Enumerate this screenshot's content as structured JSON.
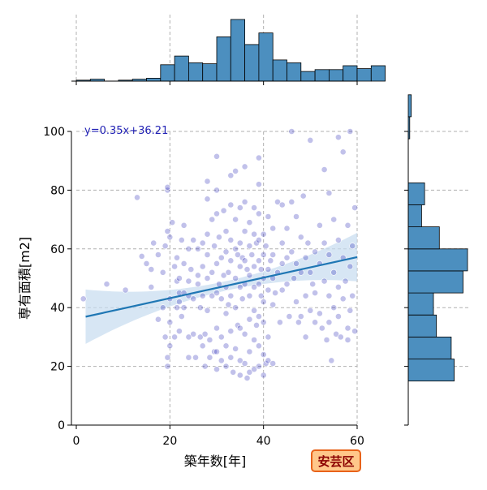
{
  "chart_data": {
    "type": "scatter",
    "subtype": "joint-plot with marginal histograms and linear regression",
    "xlabel": "築年数[年]",
    "ylabel": "専有面積[m2]",
    "xlim": [
      0,
      60
    ],
    "ylim": [
      0,
      100
    ],
    "xticks": [
      "0",
      "20",
      "40",
      "60"
    ],
    "yticks": [
      "0",
      "20",
      "40",
      "60",
      "80",
      "100"
    ],
    "grid": true,
    "regression": {
      "label": "y=0.35x+36.21",
      "slope": 0.35,
      "intercept": 36.21,
      "color": "#1f77b4",
      "ci_band_color": "#c6dbef"
    },
    "badge": {
      "text": "安芸区",
      "fill": "#ffc78a",
      "border": "#e8631a",
      "text_color": "#8b0000"
    },
    "point_color": "#1f1fb4",
    "hist_color": "#4c8fbf",
    "top_histogram": {
      "bin_width": 3,
      "bins_start": 0,
      "counts": [
        1,
        2,
        0,
        1,
        2,
        3,
        17,
        26,
        19,
        18,
        46,
        64,
        38,
        50,
        22,
        19,
        10,
        12,
        12,
        16,
        13,
        16
      ]
    },
    "right_histogram": {
      "bin_width": 7.5,
      "bins_start": 15,
      "counts": [
        31,
        29,
        19,
        17,
        37,
        40,
        21,
        9,
        11,
        0,
        0,
        1,
        2
      ]
    },
    "points": [
      [
        1.5,
        43
      ],
      [
        6.5,
        48
      ],
      [
        10.5,
        46
      ],
      [
        13,
        77.5
      ],
      [
        14,
        57.5
      ],
      [
        15,
        55
      ],
      [
        16,
        47
      ],
      [
        16,
        53
      ],
      [
        16.5,
        62
      ],
      [
        17.5,
        36
      ],
      [
        17.5,
        58
      ],
      [
        18.5,
        40
      ],
      [
        18.5,
        52
      ],
      [
        19,
        61
      ],
      [
        19,
        30
      ],
      [
        19.5,
        66
      ],
      [
        19.5,
        80
      ],
      [
        19.5,
        81
      ],
      [
        19.5,
        20
      ],
      [
        19.5,
        23
      ],
      [
        20,
        35
      ],
      [
        20,
        27
      ],
      [
        20,
        43
      ],
      [
        20,
        64
      ],
      [
        20.5,
        69
      ],
      [
        21,
        30
      ],
      [
        21,
        54
      ],
      [
        21.5,
        40
      ],
      [
        21.5,
        49
      ],
      [
        21.5,
        57
      ],
      [
        22,
        45
      ],
      [
        22,
        32
      ],
      [
        22,
        42
      ],
      [
        22,
        50
      ],
      [
        22.5,
        63
      ],
      [
        22.5,
        37
      ],
      [
        23,
        68
      ],
      [
        23,
        40
      ],
      [
        23,
        45
      ],
      [
        23,
        55
      ],
      [
        24,
        23
      ],
      [
        24,
        44
      ],
      [
        24,
        49
      ],
      [
        24,
        60
      ],
      [
        24,
        30
      ],
      [
        24.5,
        53
      ],
      [
        25,
        31
      ],
      [
        25,
        43
      ],
      [
        25,
        63
      ],
      [
        25.5,
        23
      ],
      [
        26,
        48
      ],
      [
        26,
        51
      ],
      [
        26,
        60
      ],
      [
        26.5,
        30
      ],
      [
        26.5,
        40
      ],
      [
        27,
        27
      ],
      [
        27,
        54
      ],
      [
        27,
        62
      ],
      [
        27,
        44
      ],
      [
        27.5,
        20
      ],
      [
        27.5,
        31
      ],
      [
        28,
        83
      ],
      [
        28,
        77
      ],
      [
        28,
        65
      ],
      [
        28,
        58
      ],
      [
        28,
        50
      ],
      [
        28,
        39
      ],
      [
        28.5,
        29
      ],
      [
        28.5,
        23
      ],
      [
        29,
        70
      ],
      [
        29,
        52
      ],
      [
        29,
        44
      ],
      [
        29.5,
        25
      ],
      [
        29.5,
        61
      ],
      [
        30,
        91.5
      ],
      [
        30,
        80
      ],
      [
        30,
        72
      ],
      [
        30,
        55
      ],
      [
        30,
        45
      ],
      [
        30,
        33
      ],
      [
        30,
        25
      ],
      [
        30,
        19
      ],
      [
        30.5,
        48
      ],
      [
        30.5,
        64
      ],
      [
        31,
        57
      ],
      [
        31,
        43
      ],
      [
        31,
        30
      ],
      [
        31,
        22
      ],
      [
        31.5,
        73
      ],
      [
        31.5,
        51
      ],
      [
        32,
        66
      ],
      [
        32,
        59
      ],
      [
        32,
        47
      ],
      [
        32,
        38
      ],
      [
        32,
        27
      ],
      [
        32,
        20
      ],
      [
        32.5,
        52
      ],
      [
        32.5,
        41
      ],
      [
        33,
        85
      ],
      [
        33,
        75
      ],
      [
        33,
        63
      ],
      [
        33,
        56
      ],
      [
        33,
        44
      ],
      [
        33,
        32
      ],
      [
        33,
        23
      ],
      [
        33.5,
        18
      ],
      [
        34,
        86.5
      ],
      [
        34,
        70
      ],
      [
        34,
        60
      ],
      [
        34,
        50
      ],
      [
        34,
        40
      ],
      [
        34,
        26
      ],
      [
        34.5,
        58
      ],
      [
        34.5,
        34
      ],
      [
        35,
        74
      ],
      [
        35,
        62
      ],
      [
        35,
        54
      ],
      [
        35,
        47
      ],
      [
        35,
        33
      ],
      [
        35,
        22
      ],
      [
        35,
        17
      ],
      [
        35.5,
        57
      ],
      [
        35.5,
        43
      ],
      [
        36,
        88
      ],
      [
        36,
        76
      ],
      [
        36,
        66
      ],
      [
        36,
        56
      ],
      [
        36,
        48
      ],
      [
        36,
        31
      ],
      [
        36,
        21
      ],
      [
        36.5,
        53
      ],
      [
        36.5,
        16
      ],
      [
        37,
        69
      ],
      [
        37,
        61
      ],
      [
        37,
        51
      ],
      [
        37,
        44
      ],
      [
        37,
        36
      ],
      [
        37,
        25
      ],
      [
        37,
        18
      ],
      [
        37.5,
        58
      ],
      [
        38,
        74
      ],
      [
        38,
        65
      ],
      [
        38,
        54
      ],
      [
        38,
        47
      ],
      [
        38,
        39
      ],
      [
        38,
        29
      ],
      [
        38,
        19
      ],
      [
        38.5,
        62
      ],
      [
        38.5,
        34
      ],
      [
        39,
        91
      ],
      [
        39,
        82
      ],
      [
        39,
        72
      ],
      [
        39,
        63
      ],
      [
        39,
        56
      ],
      [
        39,
        48
      ],
      [
        39,
        37
      ],
      [
        39,
        27
      ],
      [
        39,
        20
      ],
      [
        39.5,
        53
      ],
      [
        39.5,
        44
      ],
      [
        40,
        65
      ],
      [
        40,
        58
      ],
      [
        40,
        50
      ],
      [
        40,
        42
      ],
      [
        40,
        35
      ],
      [
        40,
        24
      ],
      [
        40,
        17
      ],
      [
        40.5,
        61
      ],
      [
        40.5,
        21
      ],
      [
        41,
        71
      ],
      [
        41,
        53
      ],
      [
        41,
        46
      ],
      [
        41,
        30
      ],
      [
        41,
        22
      ],
      [
        41.5,
        56
      ],
      [
        42,
        67
      ],
      [
        42,
        58
      ],
      [
        42,
        50
      ],
      [
        42,
        41
      ],
      [
        42,
        21
      ],
      [
        42.5,
        45
      ],
      [
        43,
        76
      ],
      [
        43,
        52
      ],
      [
        43.5,
        35
      ],
      [
        44,
        62
      ],
      [
        44,
        75
      ],
      [
        44,
        55
      ],
      [
        44,
        46
      ],
      [
        45,
        67
      ],
      [
        45,
        57
      ],
      [
        45,
        48
      ],
      [
        45.5,
        37
      ],
      [
        46,
        100
      ],
      [
        46,
        76
      ],
      [
        46,
        59
      ],
      [
        46.5,
        50
      ],
      [
        47,
        71
      ],
      [
        47,
        55
      ],
      [
        47,
        42
      ],
      [
        47.5,
        35
      ],
      [
        48,
        64
      ],
      [
        48,
        52
      ],
      [
        48,
        37
      ],
      [
        48.5,
        78
      ],
      [
        49,
        57
      ],
      [
        49,
        44
      ],
      [
        49,
        30
      ],
      [
        49.5,
        62
      ],
      [
        50,
        97
      ],
      [
        50,
        52
      ],
      [
        50,
        39
      ],
      [
        50.5,
        48
      ],
      [
        51,
        35
      ],
      [
        51,
        59
      ],
      [
        51,
        45
      ],
      [
        52,
        68
      ],
      [
        52,
        55
      ],
      [
        52,
        38
      ],
      [
        52.5,
        33
      ],
      [
        53,
        87
      ],
      [
        53,
        62
      ],
      [
        53,
        49
      ],
      [
        53.5,
        29
      ],
      [
        54,
        79
      ],
      [
        54,
        58
      ],
      [
        54,
        44
      ],
      [
        54,
        35
      ],
      [
        54.5,
        22
      ],
      [
        55,
        70
      ],
      [
        55,
        52
      ],
      [
        55,
        40
      ],
      [
        55.5,
        31
      ],
      [
        56,
        98
      ],
      [
        56,
        63
      ],
      [
        56,
        47
      ],
      [
        56,
        37
      ],
      [
        56.5,
        30
      ],
      [
        57,
        93
      ],
      [
        57,
        57
      ],
      [
        57,
        43
      ],
      [
        57.5,
        49
      ],
      [
        58,
        68
      ],
      [
        58,
        33
      ],
      [
        58,
        29
      ],
      [
        58.5,
        100
      ],
      [
        58.5,
        54
      ],
      [
        58.5,
        39
      ],
      [
        59,
        61
      ],
      [
        59,
        44
      ],
      [
        59.5,
        32
      ],
      [
        59.5,
        74
      ]
    ]
  }
}
